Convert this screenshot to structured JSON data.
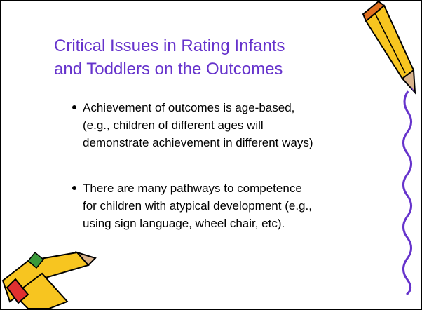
{
  "slide": {
    "title_lines": [
      "Critical Issues in Rating Infants",
      "and Toddlers on the Outcomes"
    ],
    "bullets": [
      {
        "lines": [
          "Achievement of outcomes is age-based,",
          "(e.g., children of different ages will",
          "demonstrate achievement in different ways)"
        ]
      },
      {
        "lines": [
          "There are many pathways to competence",
          "for children with atypical development (e.g.,",
          "using sign language, wheel chair, etc)."
        ]
      }
    ]
  }
}
